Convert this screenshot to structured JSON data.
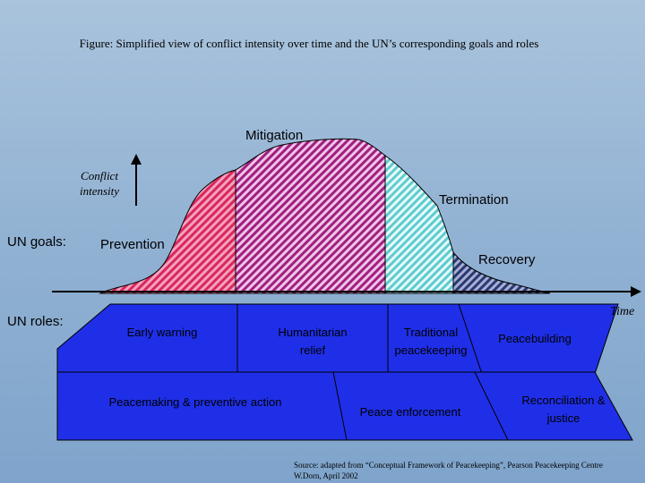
{
  "figure": {
    "title": "Figure: Simplified view of conflict intensity over time and the UN’s corresponding goals and roles",
    "y_axis_label": "Conflict intensity",
    "x_axis_label": "Time"
  },
  "goals": {
    "row_label": "UN goals:",
    "items": [
      {
        "label": "Prevention",
        "color": "#d9285c"
      },
      {
        "label": "Mitigation",
        "color": "#a0207e"
      },
      {
        "label": "Termination",
        "color": "#5fcbcf"
      },
      {
        "label": "Recovery",
        "color": "#3a4a8a"
      }
    ]
  },
  "roles": {
    "row_label": "UN roles:",
    "items": [
      {
        "label": "Early warning"
      },
      {
        "label": "Humanitarian relief"
      },
      {
        "label": "Traditional peacekeeping"
      },
      {
        "label": "Peacebuilding"
      },
      {
        "label": "Peacemaking & preventive action"
      },
      {
        "label": "Peace enforcement"
      },
      {
        "label": "Reconciliation & justice"
      }
    ],
    "box_color": "#1f2fe8"
  },
  "source": {
    "line1": "Source: adapted from “Conceptual Framework of Peacekeeping”, Pearson Peacekeeping Centre",
    "line2": "W.Dorn, April 2002"
  }
}
